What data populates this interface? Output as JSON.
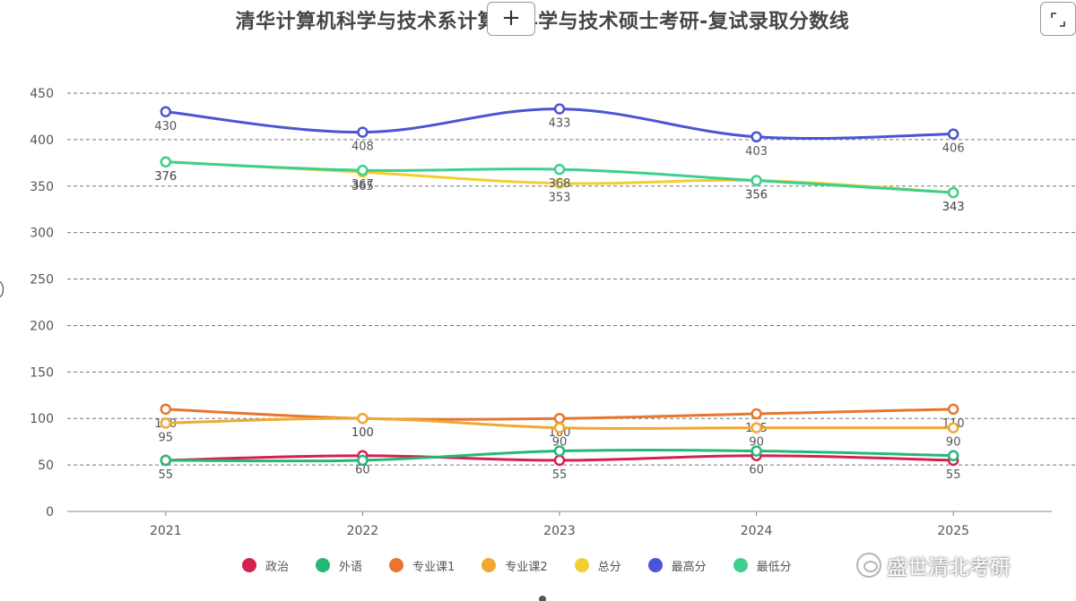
{
  "title": "清华计算机科学与技术系计算机科学与技术硕士考研-复试录取分数线",
  "toolbar": {
    "add_label": "+"
  },
  "watermark": {
    "text": "盛世清北考研"
  },
  "chart_data": {
    "type": "line",
    "title": "清华计算机科学与技术系计算机科学与技术硕士考研-复试录取分数线",
    "xlabel": "",
    "ylabel": "",
    "ylim": [
      0,
      450
    ],
    "yticks": [
      0,
      50,
      100,
      150,
      200,
      250,
      300,
      350,
      400,
      450
    ],
    "grid": true,
    "legend_position": "bottom",
    "categories": [
      "2021",
      "2022",
      "2023",
      "2024",
      "2025"
    ],
    "series": [
      {
        "name": "政治",
        "color": "#d6204e",
        "values": [
          55,
          60,
          55,
          60,
          55
        ],
        "show_labels": true
      },
      {
        "name": "外语",
        "color": "#25b877",
        "values": [
          55,
          55,
          65,
          65,
          60
        ],
        "show_labels": false
      },
      {
        "name": "专业课1",
        "color": "#e8762f",
        "values": [
          110,
          100,
          100,
          105,
          110
        ],
        "show_labels": true
      },
      {
        "name": "专业课2",
        "color": "#efa933",
        "values": [
          95,
          100,
          90,
          90,
          90
        ],
        "show_labels": true
      },
      {
        "name": "总分",
        "color": "#f0cf2e",
        "values": [
          376,
          365,
          353,
          356,
          343
        ],
        "show_labels": true
      },
      {
        "name": "最高分",
        "color": "#4a55d4",
        "values": [
          430,
          408,
          433,
          403,
          406
        ],
        "show_labels": true
      },
      {
        "name": "最低分",
        "color": "#3ecf8e",
        "values": [
          376,
          367,
          368,
          356,
          343
        ],
        "show_labels": true
      }
    ]
  }
}
